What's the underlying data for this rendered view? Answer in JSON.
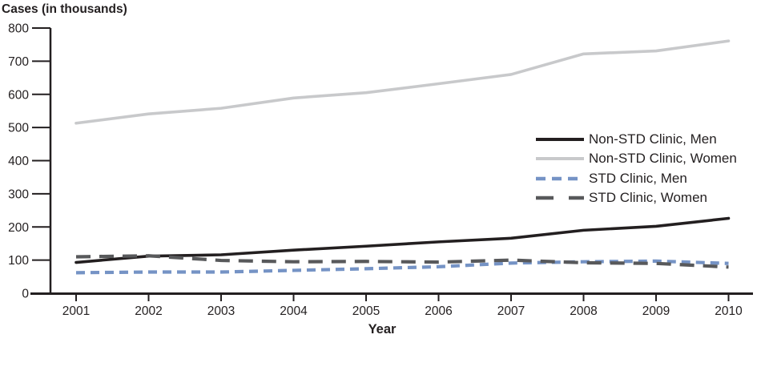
{
  "chart_data": {
    "type": "line",
    "title": "Cases (in thousands)",
    "xlabel": "Year",
    "ylabel": "Cases (in thousands)",
    "x": [
      2001,
      2002,
      2003,
      2004,
      2005,
      2006,
      2007,
      2008,
      2009,
      2010
    ],
    "ylim": [
      0,
      800
    ],
    "yticks": [
      0,
      100,
      200,
      300,
      400,
      500,
      600,
      700,
      800
    ],
    "grid": false,
    "legend_position": "middle-right",
    "series": [
      {
        "name": "Non-STD Clinic, Men",
        "style": "solid",
        "color": "#231f20",
        "values": [
          93,
          112,
          116,
          130,
          142,
          155,
          166,
          190,
          202,
          226
        ]
      },
      {
        "name": "Non-STD Clinic, Women",
        "style": "solid",
        "color": "#c8c9cb",
        "values": [
          513,
          541,
          558,
          589,
          605,
          632,
          660,
          722,
          731,
          761
        ]
      },
      {
        "name": "STD Clinic, Men",
        "style": "dashed",
        "color": "#7593c5",
        "values": [
          62,
          64,
          64,
          69,
          74,
          80,
          91,
          95,
          97,
          90
        ]
      },
      {
        "name": "STD Clinic, Women",
        "style": "long-dashed",
        "color": "#58595b",
        "values": [
          110,
          113,
          99,
          95,
          96,
          94,
          100,
          92,
          90,
          79
        ]
      }
    ]
  },
  "colors": {
    "axis": "#231f20",
    "text": "#231f20",
    "background": "#ffffff"
  }
}
